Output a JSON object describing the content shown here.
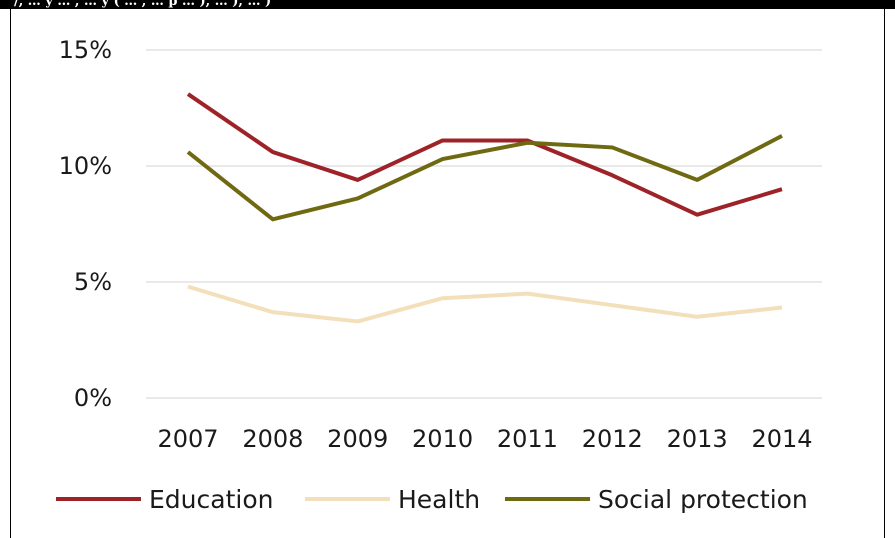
{
  "header_fragment": "/, … y … , … y ( … , … p … ), … ), … )",
  "chart_data": {
    "type": "line",
    "title": "",
    "xlabel": "",
    "ylabel": "",
    "categories": [
      "2007",
      "2008",
      "2009",
      "2010",
      "2011",
      "2012",
      "2013",
      "2014"
    ],
    "y_ticks": [
      "0%",
      "5%",
      "10%",
      "15%"
    ],
    "ylim": [
      0,
      15
    ],
    "grid": "horizontal",
    "legend_position": "bottom",
    "series": [
      {
        "name": "Education",
        "color": "#9e2328",
        "values": [
          13.1,
          10.6,
          9.4,
          11.1,
          11.1,
          9.6,
          7.9,
          9.0
        ]
      },
      {
        "name": "Health",
        "color": "#f3dfb9",
        "values": [
          4.8,
          3.7,
          3.3,
          4.3,
          4.5,
          4.0,
          3.5,
          3.9
        ]
      },
      {
        "name": "Social protection",
        "color": "#6f6a12",
        "values": [
          10.6,
          7.7,
          8.6,
          10.3,
          11.0,
          10.8,
          9.4,
          11.3
        ]
      }
    ]
  }
}
